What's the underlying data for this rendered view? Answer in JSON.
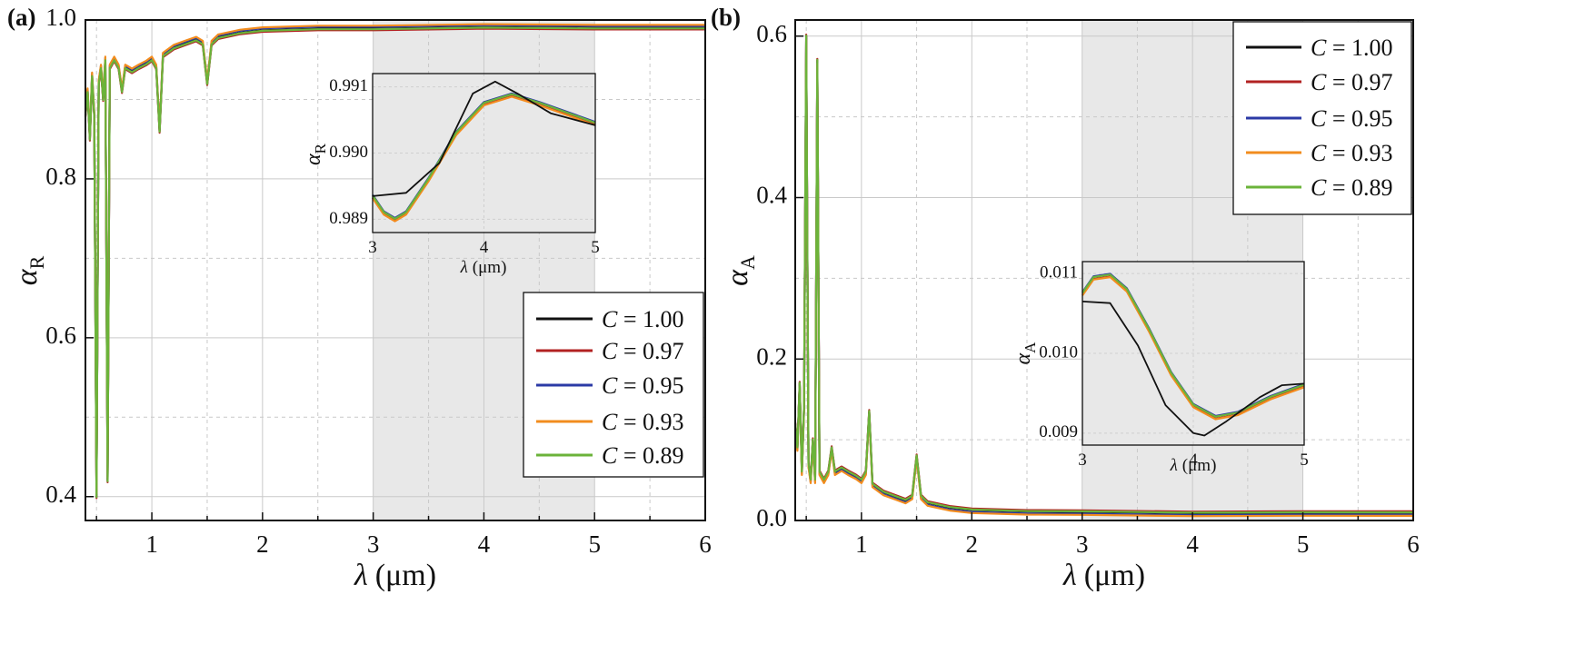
{
  "figure": {
    "colors": {
      "C100": "#111111",
      "C097": "#b22222",
      "C095": "#2b3aa6",
      "C093": "#f28c1e",
      "C089": "#6bb33a",
      "shade": "#e8e8e8",
      "grid": "#c9c9c9"
    }
  },
  "chart_data": [
    {
      "panel_label": "(a)",
      "type": "line",
      "xlabel_sym": "λ",
      "xlabel_unit": "(μm)",
      "ylabel_sym": "α",
      "ylabel_sub": "R",
      "xlim": [
        0.4,
        6
      ],
      "ylim": [
        0.37,
        1.0
      ],
      "xticks": [
        1,
        2,
        3,
        4,
        5,
        6
      ],
      "yticks": [
        0.4,
        0.6,
        0.8,
        1.0
      ],
      "ytick_labels": [
        "0.4",
        "0.6",
        "0.8",
        "1.0"
      ],
      "shaded_region": [
        3,
        5
      ],
      "legend_location": "lower-right",
      "series": [
        {
          "name": "C = 1.00",
          "c_value": "1.00",
          "color": "#111111"
        },
        {
          "name": "C = 0.97",
          "c_value": "0.97",
          "color": "#b22222"
        },
        {
          "name": "C = 0.95",
          "c_value": "0.95",
          "color": "#2b3aa6"
        },
        {
          "name": "C = 0.93",
          "c_value": "0.93",
          "color": "#f28c1e"
        },
        {
          "name": "C = 0.89",
          "c_value": "0.89",
          "color": "#6bb33a"
        }
      ],
      "curve": [
        [
          0.4,
          0.88
        ],
        [
          0.42,
          0.91
        ],
        [
          0.44,
          0.85
        ],
        [
          0.46,
          0.93
        ],
        [
          0.48,
          0.88
        ],
        [
          0.5,
          0.4
        ],
        [
          0.52,
          0.92
        ],
        [
          0.54,
          0.94
        ],
        [
          0.56,
          0.9
        ],
        [
          0.58,
          0.95
        ],
        [
          0.6,
          0.42
        ],
        [
          0.62,
          0.94
        ],
        [
          0.66,
          0.95
        ],
        [
          0.7,
          0.94
        ],
        [
          0.73,
          0.91
        ],
        [
          0.76,
          0.94
        ],
        [
          0.82,
          0.935
        ],
        [
          0.88,
          0.94
        ],
        [
          0.95,
          0.945
        ],
        [
          1.0,
          0.95
        ],
        [
          1.04,
          0.94
        ],
        [
          1.07,
          0.86
        ],
        [
          1.1,
          0.955
        ],
        [
          1.2,
          0.965
        ],
        [
          1.3,
          0.97
        ],
        [
          1.4,
          0.975
        ],
        [
          1.46,
          0.97
        ],
        [
          1.5,
          0.92
        ],
        [
          1.54,
          0.97
        ],
        [
          1.6,
          0.978
        ],
        [
          1.8,
          0.984
        ],
        [
          2.0,
          0.987
        ],
        [
          2.5,
          0.989
        ],
        [
          3.0,
          0.989
        ],
        [
          4.0,
          0.991
        ],
        [
          5.0,
          0.99
        ],
        [
          6.0,
          0.99
        ]
      ],
      "series_offsets": [
        0,
        0.003,
        -0.004,
        -0.006,
        0.001
      ],
      "inset": {
        "xlim": [
          3,
          5
        ],
        "ylim": [
          0.9888,
          0.9912
        ],
        "xticks": [
          3,
          4,
          5
        ],
        "yticks": [
          0.989,
          0.99,
          0.991
        ],
        "ytick_labels": [
          "0.989",
          "0.990",
          "0.991"
        ],
        "xlabel_sym": "λ",
        "xlabel_unit": "(μm)",
        "ylabel_sym": "α",
        "ylabel_sub": "R",
        "curve_C100": [
          [
            3.0,
            0.98935
          ],
          [
            3.3,
            0.9894
          ],
          [
            3.6,
            0.98985
          ],
          [
            3.9,
            0.9909
          ],
          [
            4.1,
            0.99108
          ],
          [
            4.3,
            0.9909
          ],
          [
            4.6,
            0.9906
          ],
          [
            5.0,
            0.99042
          ]
        ],
        "curve_others": [
          [
            3.0,
            0.98935
          ],
          [
            3.1,
            0.9891
          ],
          [
            3.2,
            0.989
          ],
          [
            3.3,
            0.9891
          ],
          [
            3.5,
            0.9896
          ],
          [
            3.75,
            0.9903
          ],
          [
            4.0,
            0.99075
          ],
          [
            4.25,
            0.99088
          ],
          [
            4.5,
            0.99075
          ],
          [
            4.75,
            0.9906
          ],
          [
            5.0,
            0.99045
          ]
        ]
      }
    },
    {
      "panel_label": "(b)",
      "type": "line",
      "xlabel_sym": "λ",
      "xlabel_unit": "(μm)",
      "ylabel_sym": "α",
      "ylabel_sub": "A",
      "xlim": [
        0.4,
        6
      ],
      "ylim": [
        0,
        0.62
      ],
      "xticks": [
        1,
        2,
        3,
        4,
        5,
        6
      ],
      "yticks": [
        0.0,
        0.2,
        0.4,
        0.6
      ],
      "ytick_labels": [
        "0.0",
        "0.2",
        "0.4",
        "0.6"
      ],
      "shaded_region": [
        3,
        5
      ],
      "legend_location": "upper-right",
      "series": [
        {
          "name": "C = 1.00",
          "c_value": "1.00",
          "color": "#111111"
        },
        {
          "name": "C = 0.97",
          "c_value": "0.97",
          "color": "#b22222"
        },
        {
          "name": "C = 0.95",
          "c_value": "0.95",
          "color": "#2b3aa6"
        },
        {
          "name": "C = 0.93",
          "c_value": "0.93",
          "color": "#f28c1e"
        },
        {
          "name": "C = 0.89",
          "c_value": "0.89",
          "color": "#6bb33a"
        }
      ],
      "curve": [
        [
          0.4,
          0.12
        ],
        [
          0.42,
          0.09
        ],
        [
          0.44,
          0.17
        ],
        [
          0.46,
          0.06
        ],
        [
          0.48,
          0.14
        ],
        [
          0.5,
          0.6
        ],
        [
          0.52,
          0.07
        ],
        [
          0.54,
          0.05
        ],
        [
          0.56,
          0.1
        ],
        [
          0.58,
          0.05
        ],
        [
          0.6,
          0.57
        ],
        [
          0.62,
          0.06
        ],
        [
          0.66,
          0.05
        ],
        [
          0.7,
          0.06
        ],
        [
          0.73,
          0.09
        ],
        [
          0.76,
          0.06
        ],
        [
          0.82,
          0.065
        ],
        [
          0.88,
          0.06
        ],
        [
          0.95,
          0.055
        ],
        [
          1.0,
          0.05
        ],
        [
          1.04,
          0.06
        ],
        [
          1.07,
          0.135
        ],
        [
          1.1,
          0.045
        ],
        [
          1.2,
          0.035
        ],
        [
          1.3,
          0.03
        ],
        [
          1.4,
          0.025
        ],
        [
          1.46,
          0.03
        ],
        [
          1.5,
          0.08
        ],
        [
          1.54,
          0.03
        ],
        [
          1.6,
          0.022
        ],
        [
          1.8,
          0.016
        ],
        [
          2.0,
          0.013
        ],
        [
          2.5,
          0.011
        ],
        [
          3.0,
          0.0107
        ],
        [
          4.0,
          0.0091
        ],
        [
          5.0,
          0.0096
        ],
        [
          6.0,
          0.0095
        ]
      ],
      "series_offsets": [
        0,
        -0.003,
        0.004,
        0.006,
        -0.001
      ],
      "inset": {
        "xlim": [
          3,
          5
        ],
        "ylim": [
          0.00885,
          0.01115
        ],
        "xticks": [
          3,
          4,
          5
        ],
        "yticks": [
          0.009,
          0.01,
          0.011
        ],
        "ytick_labels": [
          "0.009",
          "0.010",
          "0.011"
        ],
        "xlabel_sym": "λ",
        "xlabel_unit": "(μm)",
        "ylabel_sym": "α",
        "ylabel_sub": "A",
        "curve_C100": [
          [
            3.0,
            0.01065
          ],
          [
            3.25,
            0.01063
          ],
          [
            3.5,
            0.0101
          ],
          [
            3.75,
            0.00935
          ],
          [
            4.0,
            0.009
          ],
          [
            4.1,
            0.00897
          ],
          [
            4.3,
            0.00915
          ],
          [
            4.6,
            0.00945
          ],
          [
            4.8,
            0.0096
          ],
          [
            5.0,
            0.00962
          ]
        ],
        "curve_others": [
          [
            3.0,
            0.01075
          ],
          [
            3.1,
            0.01095
          ],
          [
            3.25,
            0.01098
          ],
          [
            3.4,
            0.0108
          ],
          [
            3.6,
            0.0103
          ],
          [
            3.8,
            0.00975
          ],
          [
            4.0,
            0.00935
          ],
          [
            4.2,
            0.0092
          ],
          [
            4.4,
            0.00925
          ],
          [
            4.7,
            0.00945
          ],
          [
            5.0,
            0.0096
          ]
        ]
      }
    }
  ]
}
